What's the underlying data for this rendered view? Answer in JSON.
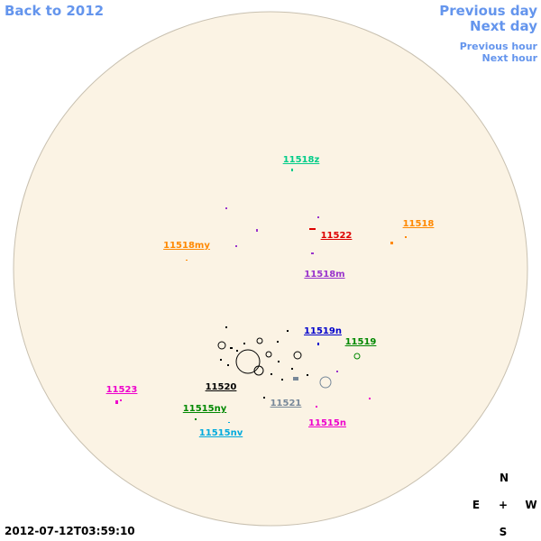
{
  "navigation": {
    "back": "Back to 2012",
    "previous_day": "Previous day",
    "next_day": "Next day",
    "previous_hour": "Previous hour",
    "next_hour": "Next hour"
  },
  "regions": [
    {
      "label": "11518z",
      "color": "#00cc88"
    },
    {
      "label": "11522",
      "color": "#dd0000"
    },
    {
      "label": "11518",
      "color": "#ff8800"
    },
    {
      "label": "11518my",
      "color": "#ff8800"
    },
    {
      "label": "11518m",
      "color": "#9933cc"
    },
    {
      "label": "11519n",
      "color": "#0000cc"
    },
    {
      "label": "11519",
      "color": "#008800"
    },
    {
      "label": "11520",
      "color": "#000000"
    },
    {
      "label": "11523",
      "color": "#ee00cc"
    },
    {
      "label": "11521",
      "color": "#778899"
    },
    {
      "label": "11515ny",
      "color": "#008800"
    },
    {
      "label": "11515n",
      "color": "#ee00cc"
    },
    {
      "label": "11515nv",
      "color": "#00aadd"
    }
  ],
  "compass": {
    "north": "N",
    "east": "E",
    "center": "+",
    "west": "W",
    "south": "S"
  },
  "timestamp": "2012-07-12T03:59:10"
}
